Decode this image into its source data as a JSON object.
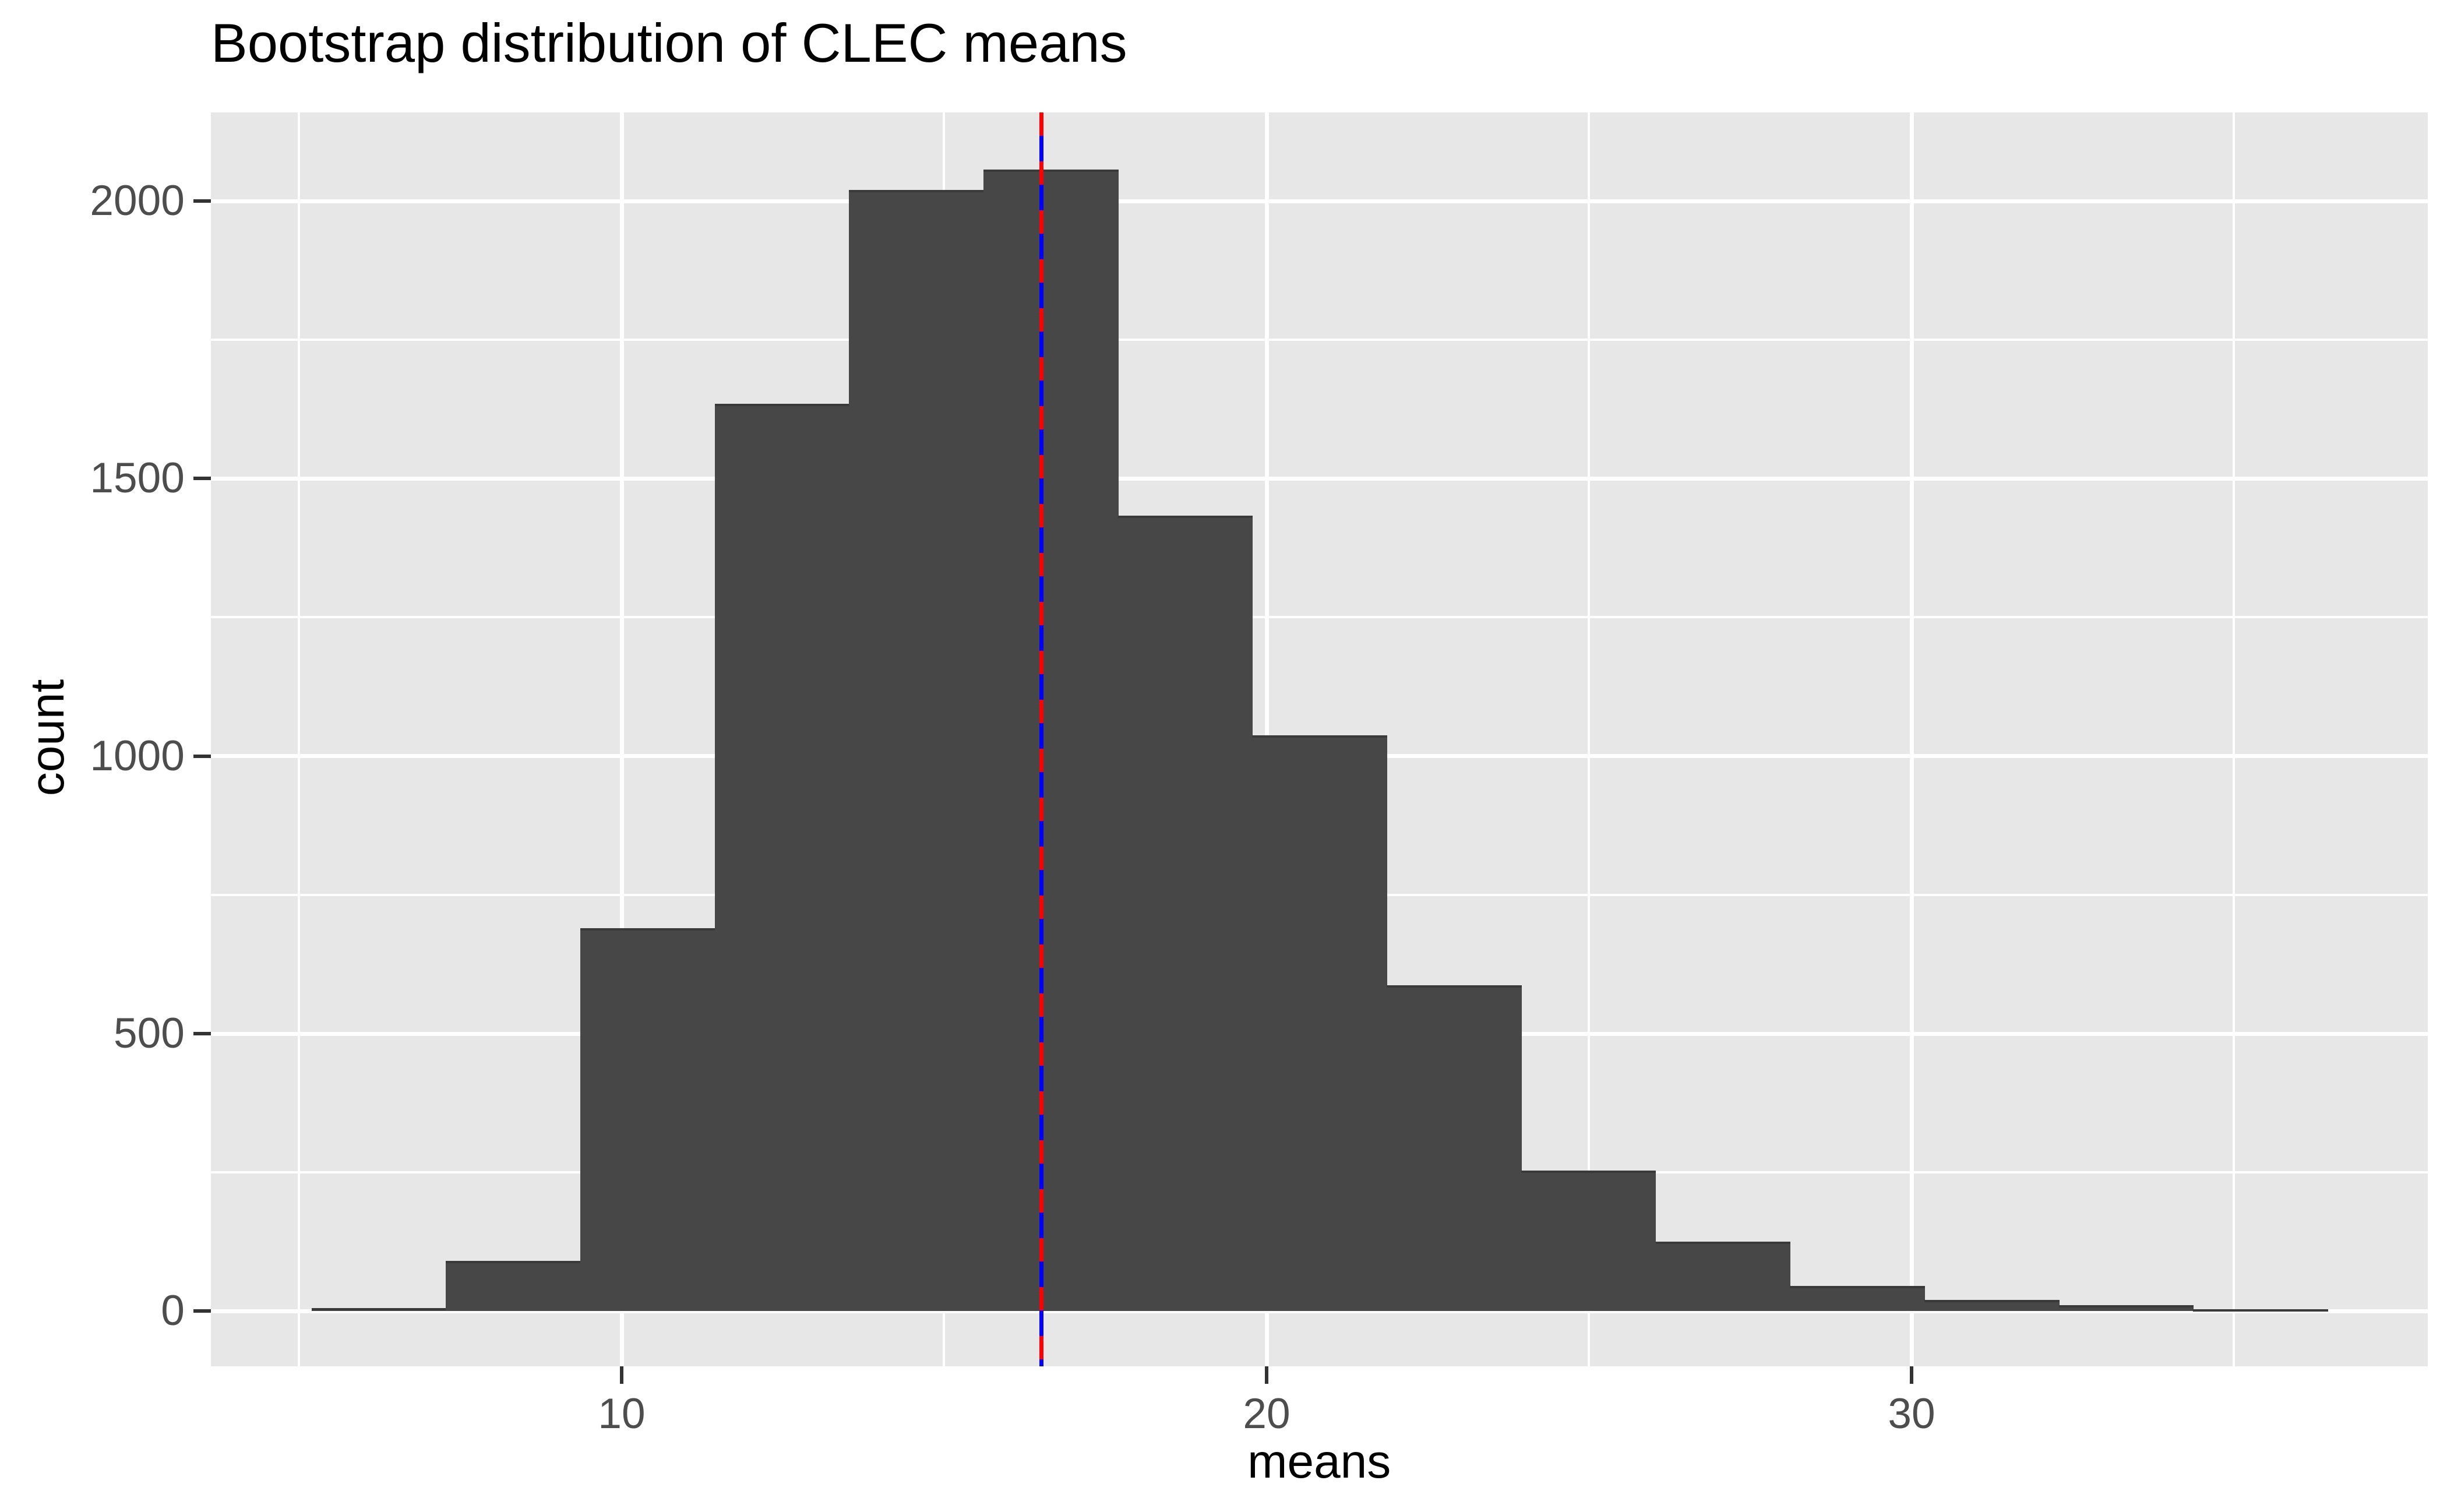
{
  "title": "Bootstrap distribution of CLEC means",
  "chart_data": {
    "type": "bar",
    "subtype": "histogram",
    "title": "Bootstrap distribution of CLEC means",
    "xlabel": "means",
    "ylabel": "count",
    "bin_start": 5.19,
    "bin_width": 2.084,
    "counts": [
      5,
      90,
      690,
      1635,
      2020,
      2057,
      1433,
      1037,
      587,
      253,
      125,
      45,
      20,
      10,
      3
    ],
    "x_major_ticks": [
      10,
      20,
      30
    ],
    "x_minor_ticks": [
      5,
      15,
      25,
      35
    ],
    "y_major_ticks": [
      0,
      500,
      1000,
      1500,
      2000
    ],
    "y_minor_ticks": [
      250,
      750,
      1250,
      1750
    ],
    "xlim": [
      3.63,
      38.0
    ],
    "ylim": [
      -100,
      2160
    ],
    "grid": "white major+minor gridlines on gray panel",
    "legend": "none",
    "vline": {
      "x": 16.51,
      "style": "red dashes over solid blue",
      "solid_color": "#0000FF",
      "dash_color": "#FF0000"
    }
  },
  "colors": {
    "page_bg": "#FFFFFF",
    "panel_bg": "#E7E7E7",
    "bar_fill": "#474747",
    "bar_top_edge": "#3A3A3A",
    "gridline": "#FFFFFF",
    "tick_mark": "#333333",
    "tick_label": "#4D4D4D",
    "title_text": "#000000",
    "vline_blue": "#0000FF",
    "vline_red": "#FF0000"
  }
}
